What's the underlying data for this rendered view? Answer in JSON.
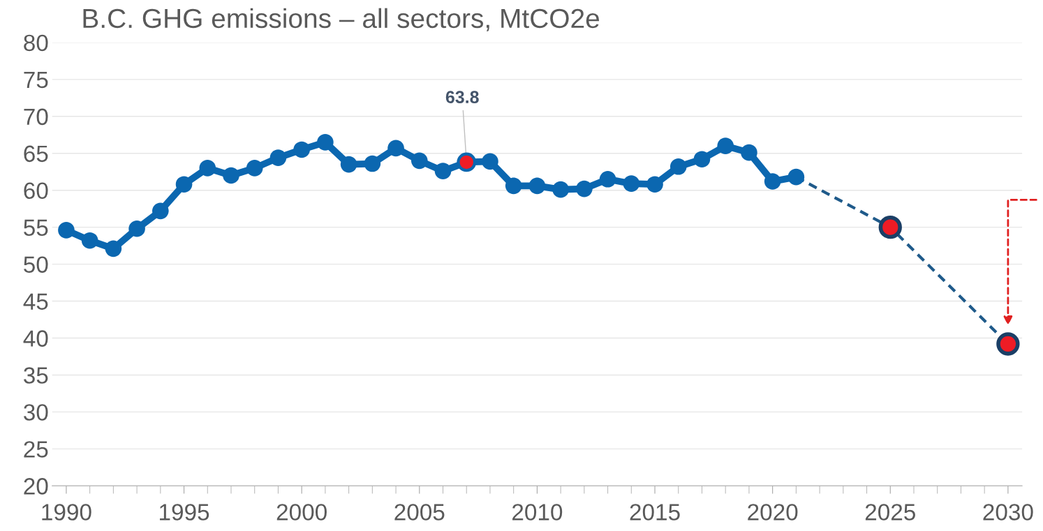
{
  "chart_data": {
    "type": "line",
    "title": "B.C. GHG emissions – all sectors, MtCO2e",
    "series": [
      {
        "color": "#0b67b0",
        "line_style": "solid",
        "marker": "circle",
        "x": [
          1990,
          1991,
          1992,
          1993,
          1994,
          1995,
          1996,
          1997,
          1998,
          1999,
          2000,
          2001,
          2002,
          2003,
          2004,
          2005,
          2006,
          2007,
          2008,
          2009,
          2010,
          2011,
          2012,
          2013,
          2014,
          2015,
          2016,
          2017,
          2018,
          2019,
          2020,
          2021
        ],
        "values": [
          54.6,
          53.2,
          52.1,
          54.8,
          57.2,
          60.8,
          63.0,
          62.0,
          63.0,
          64.4,
          65.5,
          66.5,
          63.5,
          63.6,
          65.7,
          64.0,
          62.6,
          63.8,
          63.9,
          60.6,
          60.6,
          60.1,
          60.2,
          61.5,
          60.9,
          60.8,
          63.2,
          64.2,
          66.0,
          65.1,
          61.2,
          61.8
        ],
        "colors": [
          "#0b67b0",
          "#0b67b0",
          "#0b67b0",
          "#0b67b0",
          "#0b67b0",
          "#0b67b0",
          "#0b67b0",
          "#0b67b0",
          "#0b67b0",
          "#0b67b0",
          "#0b67b0",
          "#0b67b0",
          "#0b67b0",
          "#0b67b0",
          "#0b67b0",
          "#0b67b0",
          "#0b67b0",
          "#ee1c25",
          "#0b67b0",
          "#0b67b0",
          "#0b67b0",
          "#0b67b0",
          "#0b67b0",
          "#0b67b0",
          "#0b67b0",
          "#0b67b0",
          "#0b67b0",
          "#0b67b0",
          "#0b67b0",
          "#0b67b0",
          "#0b67b0",
          "#0b67b0"
        ]
      },
      {
        "color": "#1f5a8a",
        "line_style": "dashed",
        "marker": "circle",
        "x": [
          2021,
          2025,
          2030
        ],
        "values": [
          61.8,
          55.0,
          39.2
        ],
        "colors": [
          null,
          "#ee1c25",
          "#ee1c25"
        ]
      }
    ],
    "annotations": [
      {
        "text": "63.8",
        "x": 2007,
        "y": 63.8
      }
    ],
    "xlim": [
      1989.4,
      2030.6
    ],
    "xticks": [
      1990,
      1995,
      2000,
      2005,
      2010,
      2015,
      2020,
      2025,
      2030
    ],
    "ylim": [
      20,
      80
    ],
    "yticks": [
      20,
      25,
      30,
      35,
      40,
      45,
      50,
      55,
      60,
      65,
      70,
      75,
      80
    ],
    "grid": "y"
  }
}
